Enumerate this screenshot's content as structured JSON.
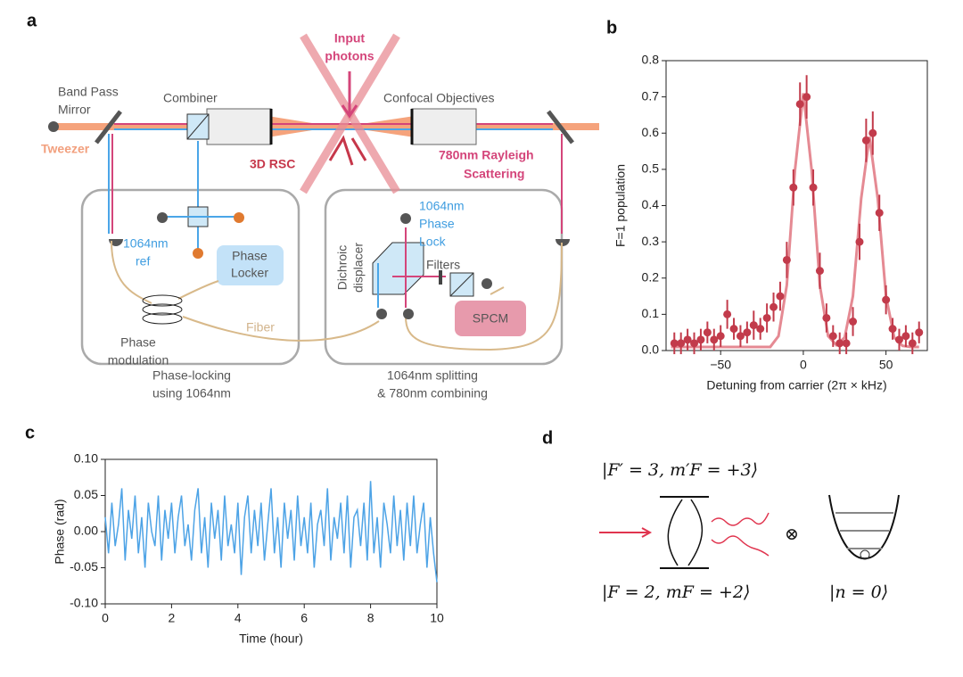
{
  "figure": {
    "panel_labels": [
      "a",
      "b",
      "c",
      "d"
    ],
    "diagram_a": {
      "band_pass_mirror": [
        "Band Pass",
        "Mirror"
      ],
      "combiner": "Combiner",
      "input_photons": [
        "Input",
        "photons"
      ],
      "confocal_objectives": "Confocal Objectives",
      "tweezer": "Tweezer",
      "rsc": "3D RSC",
      "rayleigh": [
        "780nm Rayleigh",
        "Scattering"
      ],
      "ref": [
        "1064nm",
        "ref"
      ],
      "phase_locker": [
        "Phase",
        "Locker"
      ],
      "phase_lock": [
        "1064nm",
        "Phase",
        "Lock"
      ],
      "dichroic_displacer": [
        "Dichroic",
        "displacer"
      ],
      "filters": "Filters",
      "spcm": "SPCM",
      "fiber": "Fiber",
      "phase_modulation": [
        "Phase",
        "modulation"
      ],
      "phase_locking": [
        "Phase-locking",
        "using 1064nm"
      ],
      "splitting": [
        "1064nm splitting",
        "& 780nm combining"
      ]
    },
    "diagram_d": {
      "excited": "|F′ = 3, m′F = +3⟩",
      "ground": "|F = 2, mF = +2⟩",
      "motional": "|n = 0⟩",
      "tensor": "⊗"
    }
  },
  "chart_data": [
    {
      "type": "scatter",
      "x_label": "Detuning from carrier (2π × kHz)",
      "y_label": "F=1 population",
      "x": [
        -78,
        -74,
        -70,
        -66,
        -62,
        -58,
        -54,
        -50,
        -46,
        -42,
        -38,
        -34,
        -30,
        -26,
        -22,
        -18,
        -14,
        -10,
        -6,
        -2,
        2,
        6,
        10,
        14,
        18,
        22,
        26,
        30,
        34,
        38,
        42,
        46,
        50,
        54,
        58,
        62,
        66,
        70
      ],
      "values": [
        0.02,
        0.02,
        0.03,
        0.02,
        0.03,
        0.05,
        0.03,
        0.04,
        0.1,
        0.06,
        0.04,
        0.05,
        0.07,
        0.06,
        0.09,
        0.12,
        0.15,
        0.25,
        0.45,
        0.68,
        0.7,
        0.45,
        0.22,
        0.09,
        0.04,
        0.02,
        0.02,
        0.08,
        0.3,
        0.58,
        0.6,
        0.38,
        0.14,
        0.06,
        0.03,
        0.04,
        0.02,
        0.05
      ],
      "errors": [
        0.03,
        0.03,
        0.03,
        0.03,
        0.03,
        0.03,
        0.03,
        0.03,
        0.04,
        0.03,
        0.03,
        0.03,
        0.04,
        0.03,
        0.04,
        0.04,
        0.04,
        0.05,
        0.05,
        0.06,
        0.06,
        0.05,
        0.05,
        0.04,
        0.03,
        0.03,
        0.03,
        0.04,
        0.05,
        0.06,
        0.06,
        0.05,
        0.04,
        0.03,
        0.03,
        0.03,
        0.03,
        0.03
      ],
      "fit_x": [
        -80,
        -75,
        -70,
        -65,
        -60,
        -55,
        -50,
        -45,
        -40,
        -35,
        -30,
        -25,
        -20,
        -15,
        -10,
        -5,
        0,
        5,
        10,
        15,
        20,
        25,
        30,
        35,
        40,
        45,
        50,
        55,
        60,
        65,
        70
      ],
      "fit_values": [
        0.01,
        0.01,
        0.01,
        0.01,
        0.01,
        0.01,
        0.01,
        0.01,
        0.01,
        0.01,
        0.01,
        0.01,
        0.01,
        0.04,
        0.18,
        0.5,
        0.71,
        0.5,
        0.18,
        0.04,
        0.015,
        0.036,
        0.15,
        0.42,
        0.59,
        0.42,
        0.15,
        0.036,
        0.013,
        0.01,
        0.01
      ],
      "color": "#c23b4b",
      "fit_color": "#e58a93",
      "xlim": [
        -83,
        75
      ],
      "xticks": [
        {
          "value": -50,
          "label": "−50"
        },
        0,
        50
      ],
      "ylim": [
        0,
        0.8
      ],
      "yticks": [
        {
          "value": 0,
          "label": "0.0"
        },
        0.1,
        0.2,
        0.3,
        0.4,
        0.5,
        0.6,
        0.7,
        0.8
      ]
    },
    {
      "type": "line",
      "x_label": "Time (hour)",
      "y_label": "Phase (rad)",
      "x": [
        0,
        0.1,
        0.2,
        0.3,
        0.4,
        0.5,
        0.6,
        0.7,
        0.8,
        0.9,
        1,
        1.1,
        1.2,
        1.3,
        1.4,
        1.5,
        1.6,
        1.7,
        1.8,
        1.9,
        2,
        2.1,
        2.2,
        2.3,
        2.4,
        2.5,
        2.6,
        2.7,
        2.8,
        2.9,
        3,
        3.1,
        3.2,
        3.3,
        3.4,
        3.5,
        3.6,
        3.7,
        3.8,
        3.9,
        4,
        4.1,
        4.2,
        4.3,
        4.4,
        4.5,
        4.6,
        4.7,
        4.8,
        4.9,
        5,
        5.1,
        5.2,
        5.3,
        5.4,
        5.5,
        5.6,
        5.7,
        5.8,
        5.9,
        6,
        6.1,
        6.2,
        6.3,
        6.4,
        6.5,
        6.6,
        6.7,
        6.8,
        6.9,
        7,
        7.1,
        7.2,
        7.3,
        7.4,
        7.5,
        7.6,
        7.7,
        7.8,
        7.9,
        8,
        8.1,
        8.2,
        8.3,
        8.4,
        8.5,
        8.6,
        8.7,
        8.8,
        8.9,
        9,
        9.1,
        9.2,
        9.3,
        9.4,
        9.5,
        9.6,
        9.7,
        9.8,
        9.9,
        10
      ],
      "values": [
        0.02,
        -0.03,
        0.04,
        -0.02,
        0.01,
        0.06,
        -0.04,
        0.03,
        -0.01,
        0.05,
        -0.03,
        0.02,
        -0.05,
        0.04,
        0.0,
        -0.02,
        0.05,
        -0.04,
        0.03,
        -0.01,
        0.04,
        -0.03,
        0.02,
        0.05,
        -0.02,
        0.01,
        -0.04,
        0.03,
        0.06,
        -0.03,
        0.02,
        -0.05,
        0.04,
        -0.01,
        0.03,
        -0.04,
        0.05,
        -0.02,
        0.01,
        -0.03,
        0.04,
        -0.06,
        0.02,
        0.05,
        -0.03,
        0.03,
        -0.02,
        0.04,
        -0.04,
        0.01,
        0.06,
        -0.03,
        0.02,
        -0.05,
        0.04,
        -0.01,
        0.03,
        -0.04,
        0.05,
        -0.02,
        0.02,
        -0.03,
        0.04,
        -0.05,
        0.01,
        0.03,
        -0.02,
        0.06,
        -0.04,
        0.02,
        -0.01,
        0.04,
        -0.03,
        0.05,
        -0.05,
        0.02,
        0.03,
        -0.02,
        0.04,
        -0.04,
        0.07,
        -0.03,
        0.02,
        -0.05,
        0.04,
        0.01,
        -0.03,
        0.05,
        -0.02,
        0.03,
        -0.04,
        0.04,
        -0.02,
        0.05,
        -0.03,
        0.01,
        0.04,
        -0.05,
        0.02,
        -0.03,
        -0.07
      ],
      "color": "#4da3e6",
      "xlim": [
        0,
        10
      ],
      "xticks": [
        0,
        2,
        4,
        6,
        8,
        10
      ],
      "ylim": [
        -0.1,
        0.1
      ],
      "yticks": [
        {
          "value": -0.1,
          "label": "-0.10"
        },
        {
          "value": -0.05,
          "label": "-0.05"
        },
        {
          "value": 0,
          "label": "0.00"
        },
        0.05,
        {
          "value": 0.1,
          "label": "0.10"
        }
      ]
    }
  ]
}
